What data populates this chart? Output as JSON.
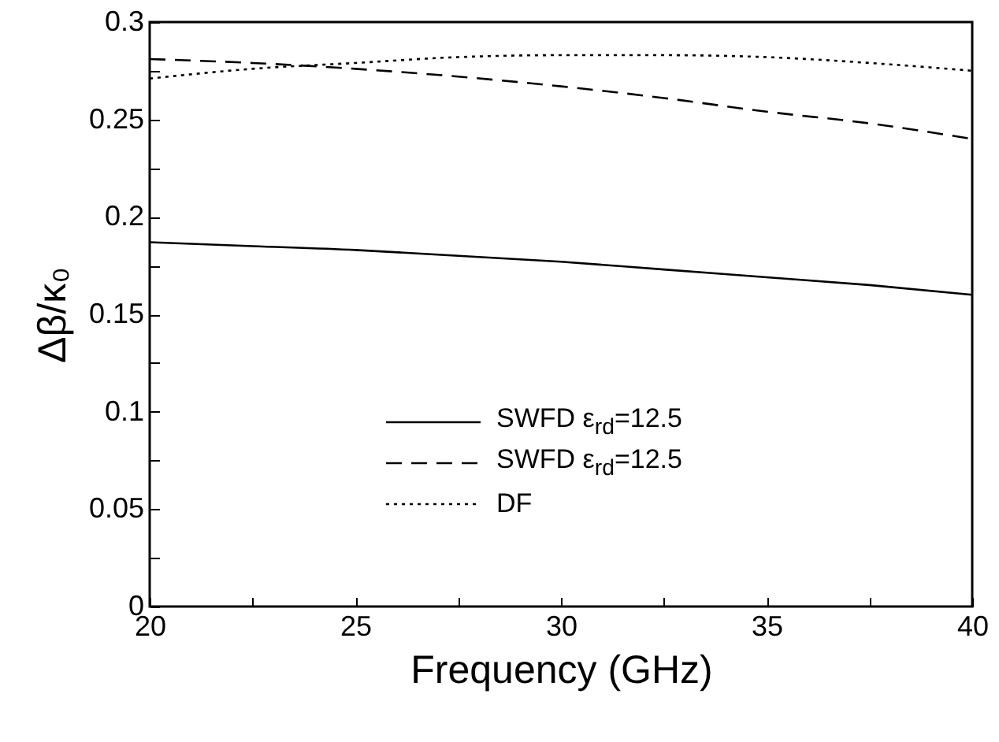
{
  "chart_data": {
    "type": "line",
    "xlabel": "Frequency (GHz)",
    "ylabel": "Δβ/κ₀",
    "x": [
      20,
      22.5,
      25,
      27.5,
      30,
      32.5,
      35,
      37.5,
      40
    ],
    "series": [
      {
        "name": "SWFD  ε$_{rd}$=12.5",
        "color": "#000000",
        "line_style": "solid",
        "values": [
          0.187,
          0.185,
          0.183,
          0.18,
          0.177,
          0.173,
          0.169,
          0.165,
          0.16
        ]
      },
      {
        "name": "SWFD  ε$_{rd}$=12.5",
        "color": "#000000",
        "line_style": "dashed",
        "values": [
          0.281,
          0.279,
          0.276,
          0.272,
          0.267,
          0.261,
          0.254,
          0.248,
          0.24
        ]
      },
      {
        "name": "DF",
        "color": "#000000",
        "line_style": "dotted",
        "values": [
          0.271,
          0.276,
          0.279,
          0.282,
          0.283,
          0.283,
          0.282,
          0.279,
          0.275
        ]
      }
    ],
    "xlim": [
      20,
      40
    ],
    "xticks": [
      20,
      {
        "value": 22.5,
        "label": null
      },
      25,
      {
        "value": 27.5,
        "label": null
      },
      30,
      {
        "value": 32.5,
        "label": null
      },
      35,
      {
        "value": 37.5,
        "label": null
      },
      40
    ],
    "ylim": [
      0,
      0.3
    ],
    "yticks": [
      0,
      {
        "value": 0.025,
        "label": null
      },
      0.05,
      {
        "value": 0.075,
        "label": null
      },
      0.1,
      {
        "value": 0.125,
        "label": null
      },
      0.15,
      {
        "value": 0.175,
        "label": null
      },
      0.2,
      {
        "value": 0.225,
        "label": null
      },
      0.25,
      {
        "value": 0.275,
        "label": null
      },
      0.3
    ],
    "grid": false,
    "legend": "bottom",
    "marker": "none"
  }
}
